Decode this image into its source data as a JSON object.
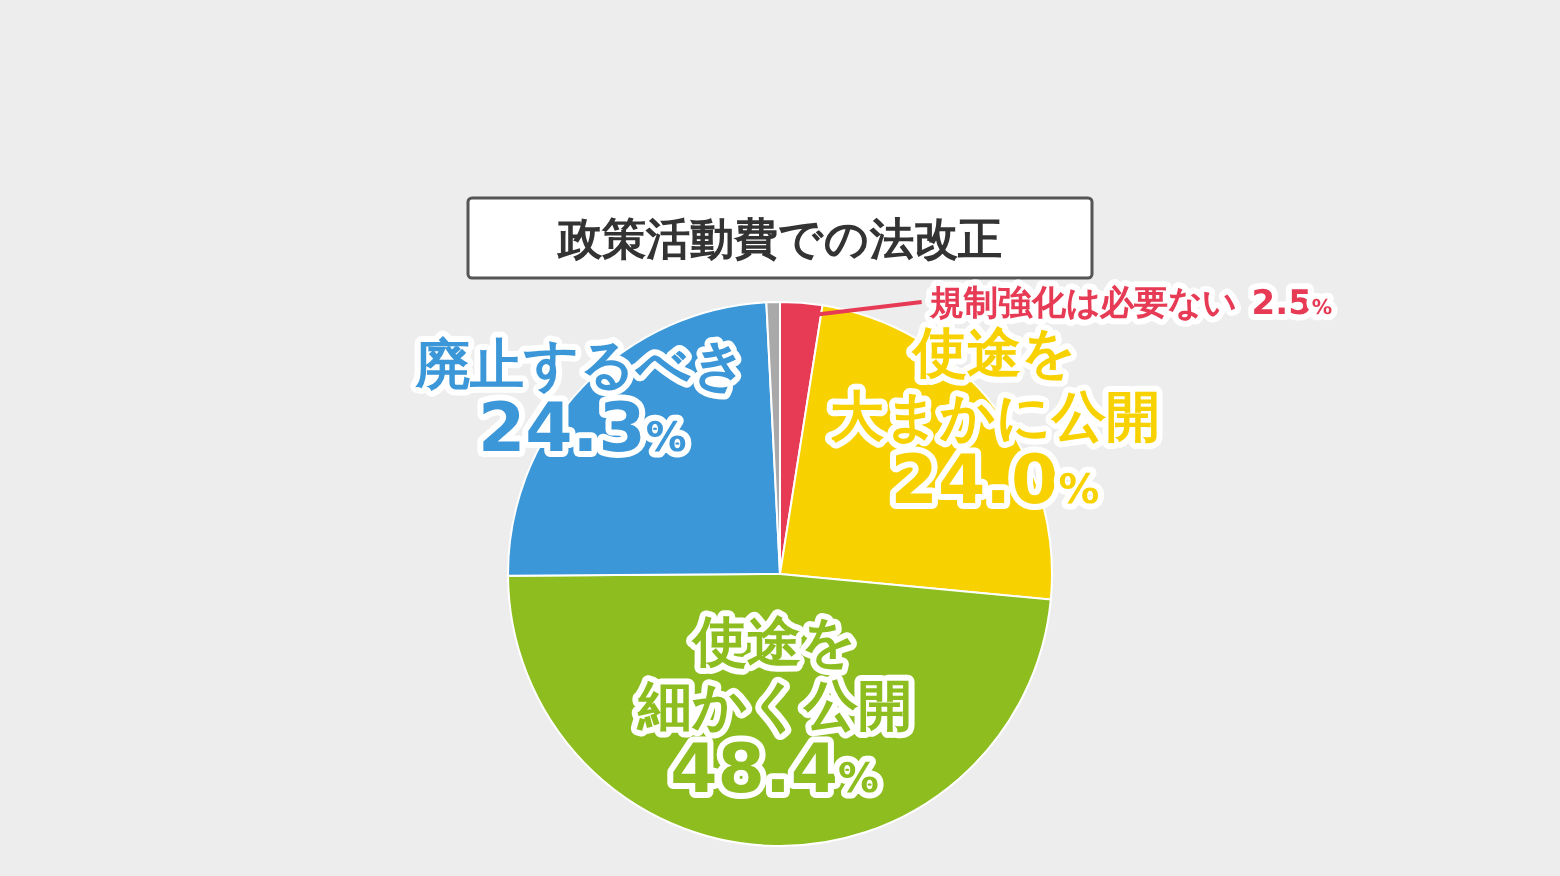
{
  "chart_data": {
    "type": "pie",
    "title": "政策活動費での法改正",
    "categories": [
      "規制強化は必要ない",
      "使途を大まかに公開",
      "使途を細かく公開",
      "廃止するべき",
      null
    ],
    "values": [
      2.5,
      24.0,
      48.4,
      24.3,
      0.8
    ],
    "value_labels": [
      "2.5%",
      "24.0%",
      "48.4%",
      "24.3%",
      null
    ],
    "colors": [
      "#e63a55",
      "#f7d200",
      "#8dbd1e",
      "#3b97d8",
      "#a9a9a9"
    ]
  }
}
